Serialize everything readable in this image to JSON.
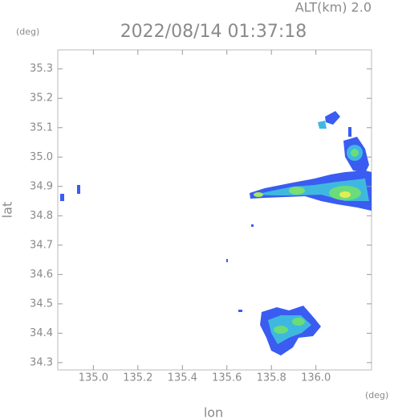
{
  "chart_data": {
    "type": "map",
    "title": "2022/08/14 01:37:18",
    "subtitle": "ALT(km) 2.0",
    "y_unit": "(deg)",
    "x_unit": "(deg)",
    "xlabel": "lon",
    "ylabel": "lat",
    "xlim": [
      134.84,
      136.25
    ],
    "ylim": [
      34.275,
      35.365
    ],
    "xticks": [
      {
        "value": 135.0,
        "label": "135.0"
      },
      135.2,
      135.4,
      135.6,
      135.8,
      {
        "value": 136.0,
        "label": "136.0"
      }
    ],
    "yticks": [
      34.3,
      34.4,
      34.5,
      34.6,
      34.7,
      34.8,
      34.9,
      {
        "value": 35.0,
        "label": "35.0"
      },
      35.1,
      35.2,
      35.3
    ]
  }
}
